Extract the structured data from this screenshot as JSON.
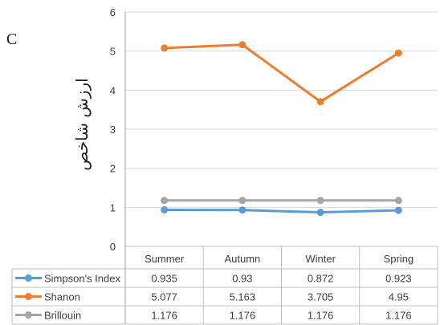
{
  "panel_label": "C",
  "chart_data": {
    "type": "line",
    "title": "",
    "xlabel": "",
    "ylabel": "ارزش شاخص",
    "ylim": [
      0,
      6
    ],
    "yticks": [
      "0",
      "1",
      "2",
      "3",
      "4",
      "5",
      "6"
    ],
    "grid": true,
    "legend": "data-table",
    "categories": [
      "Summer",
      "Autumn",
      "Winter",
      "Spring"
    ],
    "series": [
      {
        "name": "Simpson's Index",
        "color": "#5b9bd5",
        "values": [
          0.935,
          0.93,
          0.872,
          0.923
        ],
        "labels": [
          "0.935",
          "0.93",
          "0.872",
          "0.923"
        ]
      },
      {
        "name": "Shanon",
        "color": "#ed7d31",
        "values": [
          5.077,
          5.163,
          3.705,
          4.95
        ],
        "labels": [
          "5.077",
          "5.163",
          "3.705",
          "4.95"
        ]
      },
      {
        "name": "Brillouin",
        "color": "#a5a5a5",
        "values": [
          1.176,
          1.176,
          1.176,
          1.176
        ],
        "labels": [
          "1.176",
          "1.176",
          "1.176",
          "1.176"
        ]
      }
    ]
  }
}
